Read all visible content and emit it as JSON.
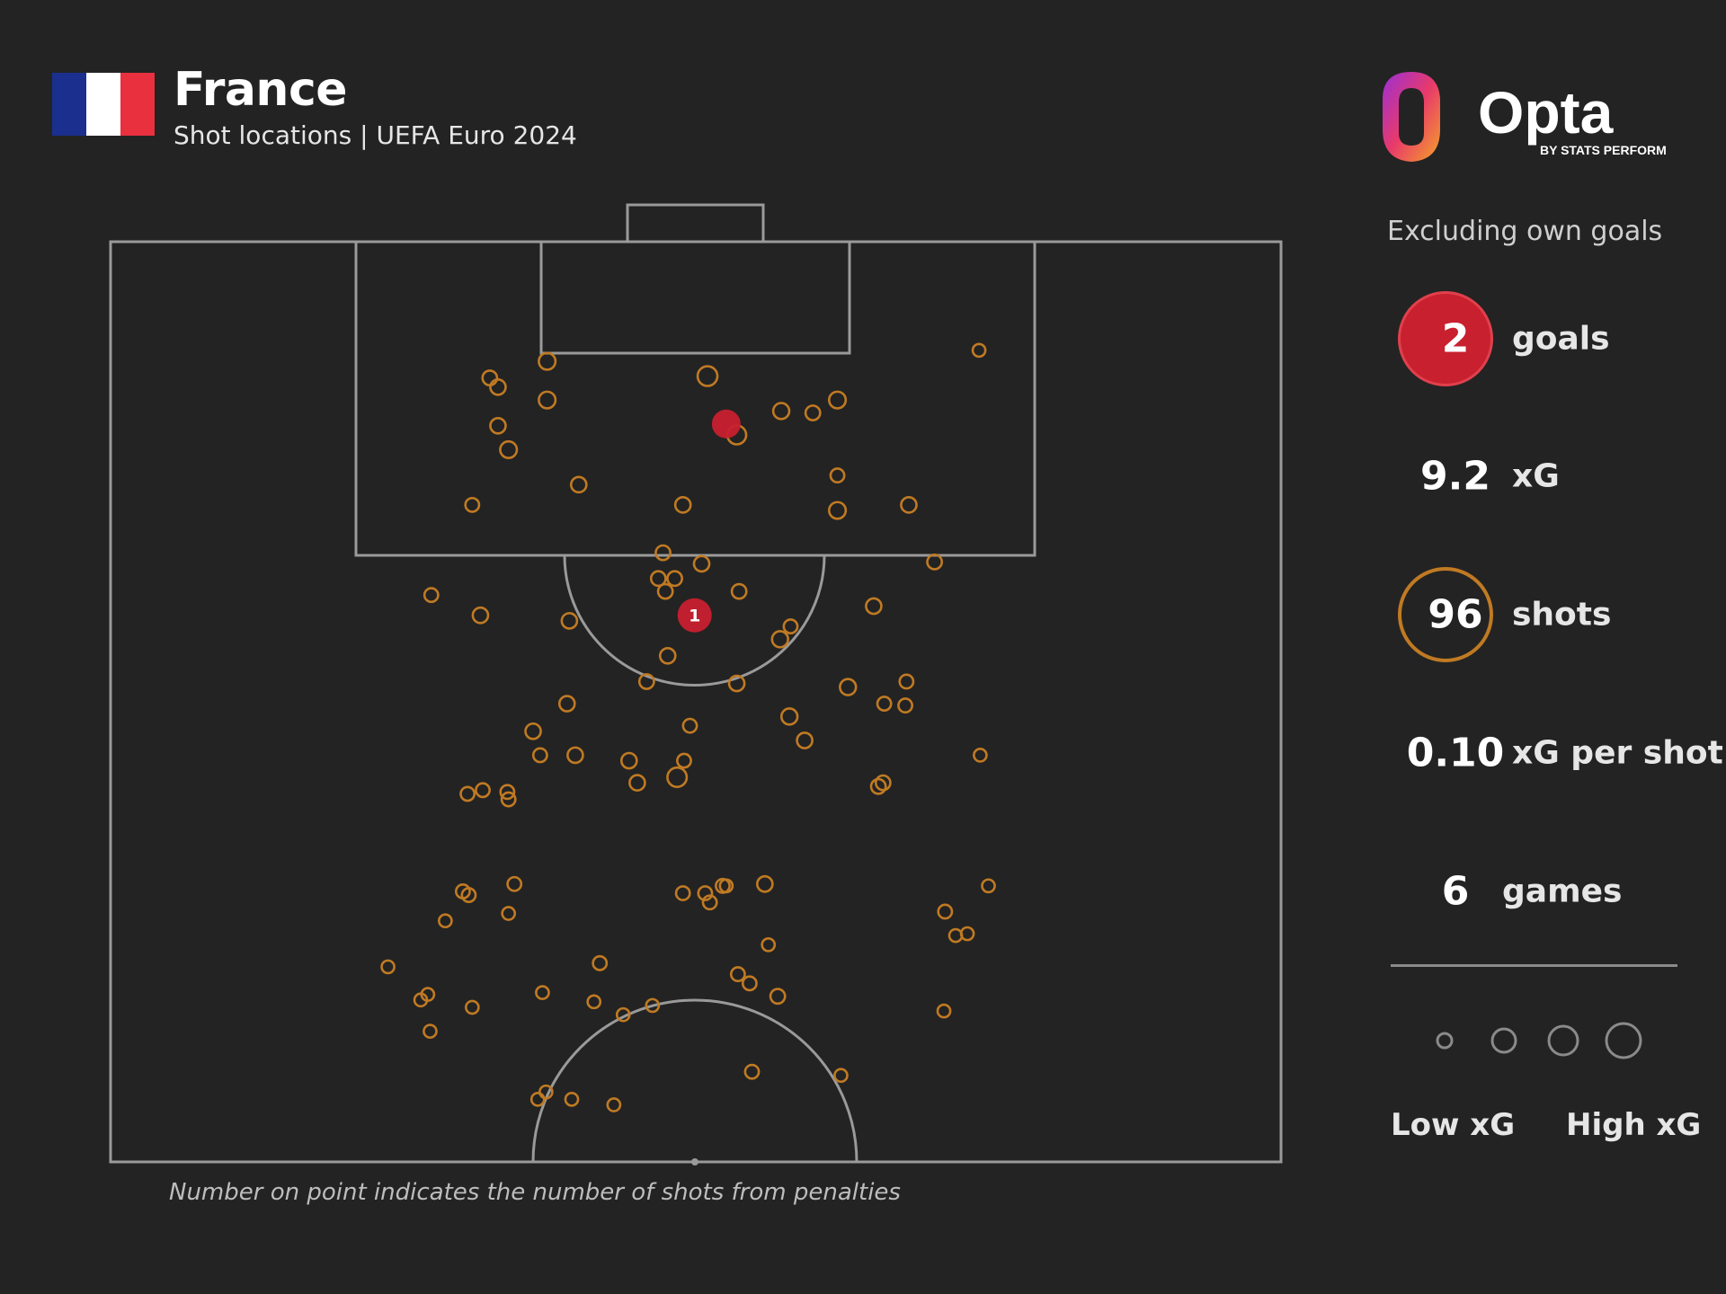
{
  "header": {
    "team": "France",
    "subtitle": "Shot locations | UEFA Euro 2024",
    "flag_colors": [
      "#1b2f8f",
      "#ffffff",
      "#e8303f"
    ]
  },
  "brand": {
    "name": "Opta",
    "tagline": "BY STATS PERFORM"
  },
  "stats": {
    "note": "Excluding own goals",
    "goals": {
      "value": "2",
      "label": "goals"
    },
    "xg": {
      "value": "9.2",
      "label": "xG"
    },
    "shots": {
      "value": "96",
      "label": "shots"
    },
    "xg_per_shot": {
      "value": "0.10",
      "label": "xG per shot"
    },
    "games": {
      "value": "6",
      "label": "games"
    }
  },
  "legend": {
    "low": "Low xG",
    "high": "High xG"
  },
  "footnote": "Number on point indicates the number of shots from penalties",
  "colors": {
    "background": "#232323",
    "shot": "#c07a23",
    "goal": "#c8202f",
    "pitch_lines": "#9a9a9a"
  },
  "chart_data": {
    "type": "scatter",
    "x_range": [
      0,
      100
    ],
    "y_range": [
      0,
      50
    ],
    "points": [
      {
        "x": 32.4,
        "y": 7.4,
        "xg": 0.04
      },
      {
        "x": 33.1,
        "y": 7.9,
        "xg": 0.05
      },
      {
        "x": 33.1,
        "y": 10.0,
        "xg": 0.05
      },
      {
        "x": 34.0,
        "y": 11.3,
        "xg": 0.07
      },
      {
        "x": 37.3,
        "y": 6.5,
        "xg": 0.07
      },
      {
        "x": 37.3,
        "y": 8.6,
        "xg": 0.07
      },
      {
        "x": 40.0,
        "y": 13.2,
        "xg": 0.05
      },
      {
        "x": 30.9,
        "y": 14.3,
        "xg": 0.03
      },
      {
        "x": 27.4,
        "y": 19.2,
        "xg": 0.03
      },
      {
        "x": 31.6,
        "y": 20.3,
        "xg": 0.05
      },
      {
        "x": 39.2,
        "y": 20.6,
        "xg": 0.05
      },
      {
        "x": 48.9,
        "y": 14.3,
        "xg": 0.05
      },
      {
        "x": 47.2,
        "y": 16.9,
        "xg": 0.04
      },
      {
        "x": 46.8,
        "y": 18.3,
        "xg": 0.04
      },
      {
        "x": 48.2,
        "y": 18.3,
        "xg": 0.04
      },
      {
        "x": 47.4,
        "y": 19.0,
        "xg": 0.04
      },
      {
        "x": 50.5,
        "y": 17.5,
        "xg": 0.05
      },
      {
        "x": 53.7,
        "y": 19.0,
        "xg": 0.04
      },
      {
        "x": 47.6,
        "y": 22.5,
        "xg": 0.05
      },
      {
        "x": 45.8,
        "y": 23.9,
        "xg": 0.04
      },
      {
        "x": 49.5,
        "y": 26.3,
        "xg": 0.03
      },
      {
        "x": 53.5,
        "y": 24.0,
        "xg": 0.05
      },
      {
        "x": 39.0,
        "y": 25.1,
        "xg": 0.05
      },
      {
        "x": 36.1,
        "y": 26.6,
        "xg": 0.05
      },
      {
        "x": 36.7,
        "y": 27.9,
        "xg": 0.03
      },
      {
        "x": 39.7,
        "y": 27.9,
        "xg": 0.05
      },
      {
        "x": 44.3,
        "y": 28.2,
        "xg": 0.05
      },
      {
        "x": 45.0,
        "y": 29.4,
        "xg": 0.05
      },
      {
        "x": 48.4,
        "y": 29.1,
        "xg": 0.12
      },
      {
        "x": 49.0,
        "y": 28.2,
        "xg": 0.03
      },
      {
        "x": 30.5,
        "y": 30.0,
        "xg": 0.03
      },
      {
        "x": 31.8,
        "y": 29.8,
        "xg": 0.03
      },
      {
        "x": 33.9,
        "y": 29.9,
        "xg": 0.03
      },
      {
        "x": 34.0,
        "y": 30.3,
        "xg": 0.03
      },
      {
        "x": 51.0,
        "y": 7.3,
        "xg": 0.13
      },
      {
        "x": 53.5,
        "y": 10.5,
        "xg": 0.11
      },
      {
        "x": 57.3,
        "y": 9.2,
        "xg": 0.06
      },
      {
        "x": 60.0,
        "y": 9.3,
        "xg": 0.04
      },
      {
        "x": 62.1,
        "y": 8.6,
        "xg": 0.07
      },
      {
        "x": 62.1,
        "y": 12.7,
        "xg": 0.03
      },
      {
        "x": 62.1,
        "y": 14.6,
        "xg": 0.07
      },
      {
        "x": 57.2,
        "y": 21.6,
        "xg": 0.06
      },
      {
        "x": 58.1,
        "y": 20.9,
        "xg": 0.03
      },
      {
        "x": 58.0,
        "y": 25.8,
        "xg": 0.06
      },
      {
        "x": 59.3,
        "y": 27.1,
        "xg": 0.05
      },
      {
        "x": 63.0,
        "y": 24.2,
        "xg": 0.06
      },
      {
        "x": 65.2,
        "y": 19.8,
        "xg": 0.05
      },
      {
        "x": 68.2,
        "y": 14.3,
        "xg": 0.05
      },
      {
        "x": 70.4,
        "y": 17.4,
        "xg": 0.04
      },
      {
        "x": 74.2,
        "y": 5.9,
        "xg": 0.02
      },
      {
        "x": 66.1,
        "y": 25.1,
        "xg": 0.03
      },
      {
        "x": 68.0,
        "y": 23.9,
        "xg": 0.03
      },
      {
        "x": 67.9,
        "y": 25.2,
        "xg": 0.03
      },
      {
        "x": 66.0,
        "y": 29.4,
        "xg": 0.04
      },
      {
        "x": 65.6,
        "y": 29.6,
        "xg": 0.04
      },
      {
        "x": 74.3,
        "y": 27.9,
        "xg": 0.02
      },
      {
        "x": 30.1,
        "y": 35.3,
        "xg": 0.03
      },
      {
        "x": 30.6,
        "y": 35.5,
        "xg": 0.03
      },
      {
        "x": 34.5,
        "y": 34.9,
        "xg": 0.03
      },
      {
        "x": 34.0,
        "y": 36.5,
        "xg": 0.02
      },
      {
        "x": 28.6,
        "y": 36.9,
        "xg": 0.02
      },
      {
        "x": 23.7,
        "y": 39.4,
        "xg": 0.02
      },
      {
        "x": 27.1,
        "y": 40.9,
        "xg": 0.02
      },
      {
        "x": 26.5,
        "y": 41.2,
        "xg": 0.02
      },
      {
        "x": 27.3,
        "y": 42.9,
        "xg": 0.02
      },
      {
        "x": 30.9,
        "y": 41.6,
        "xg": 0.02
      },
      {
        "x": 41.8,
        "y": 39.2,
        "xg": 0.03
      },
      {
        "x": 36.9,
        "y": 40.8,
        "xg": 0.02
      },
      {
        "x": 41.3,
        "y": 41.3,
        "xg": 0.02
      },
      {
        "x": 43.8,
        "y": 42.0,
        "xg": 0.02
      },
      {
        "x": 46.3,
        "y": 41.5,
        "xg": 0.02
      },
      {
        "x": 48.9,
        "y": 35.4,
        "xg": 0.03
      },
      {
        "x": 50.8,
        "y": 35.4,
        "xg": 0.03
      },
      {
        "x": 51.2,
        "y": 35.9,
        "xg": 0.03
      },
      {
        "x": 52.3,
        "y": 35.0,
        "xg": 0.03
      },
      {
        "x": 52.6,
        "y": 35.0,
        "xg": 0.02
      },
      {
        "x": 55.9,
        "y": 34.9,
        "xg": 0.05
      },
      {
        "x": 56.2,
        "y": 38.2,
        "xg": 0.02
      },
      {
        "x": 53.6,
        "y": 39.8,
        "xg": 0.03
      },
      {
        "x": 54.6,
        "y": 40.3,
        "xg": 0.03
      },
      {
        "x": 57.0,
        "y": 41.0,
        "xg": 0.04
      },
      {
        "x": 54.8,
        "y": 45.1,
        "xg": 0.03
      },
      {
        "x": 62.4,
        "y": 45.3,
        "xg": 0.02
      },
      {
        "x": 36.5,
        "y": 46.6,
        "xg": 0.02
      },
      {
        "x": 37.2,
        "y": 46.2,
        "xg": 0.02
      },
      {
        "x": 39.4,
        "y": 46.6,
        "xg": 0.02
      },
      {
        "x": 43.0,
        "y": 46.9,
        "xg": 0.02
      },
      {
        "x": 71.3,
        "y": 36.4,
        "xg": 0.03
      },
      {
        "x": 72.2,
        "y": 37.7,
        "xg": 0.02
      },
      {
        "x": 73.2,
        "y": 37.6,
        "xg": 0.02
      },
      {
        "x": 75.0,
        "y": 35.0,
        "xg": 0.02
      },
      {
        "x": 71.2,
        "y": 41.8,
        "xg": 0.02
      }
    ],
    "goals": [
      {
        "x": 52.6,
        "y": 9.9,
        "xg": 0.2,
        "penalties": ""
      },
      {
        "x": 49.9,
        "y": 20.3,
        "xg": 0.79,
        "penalties": "1"
      }
    ]
  }
}
